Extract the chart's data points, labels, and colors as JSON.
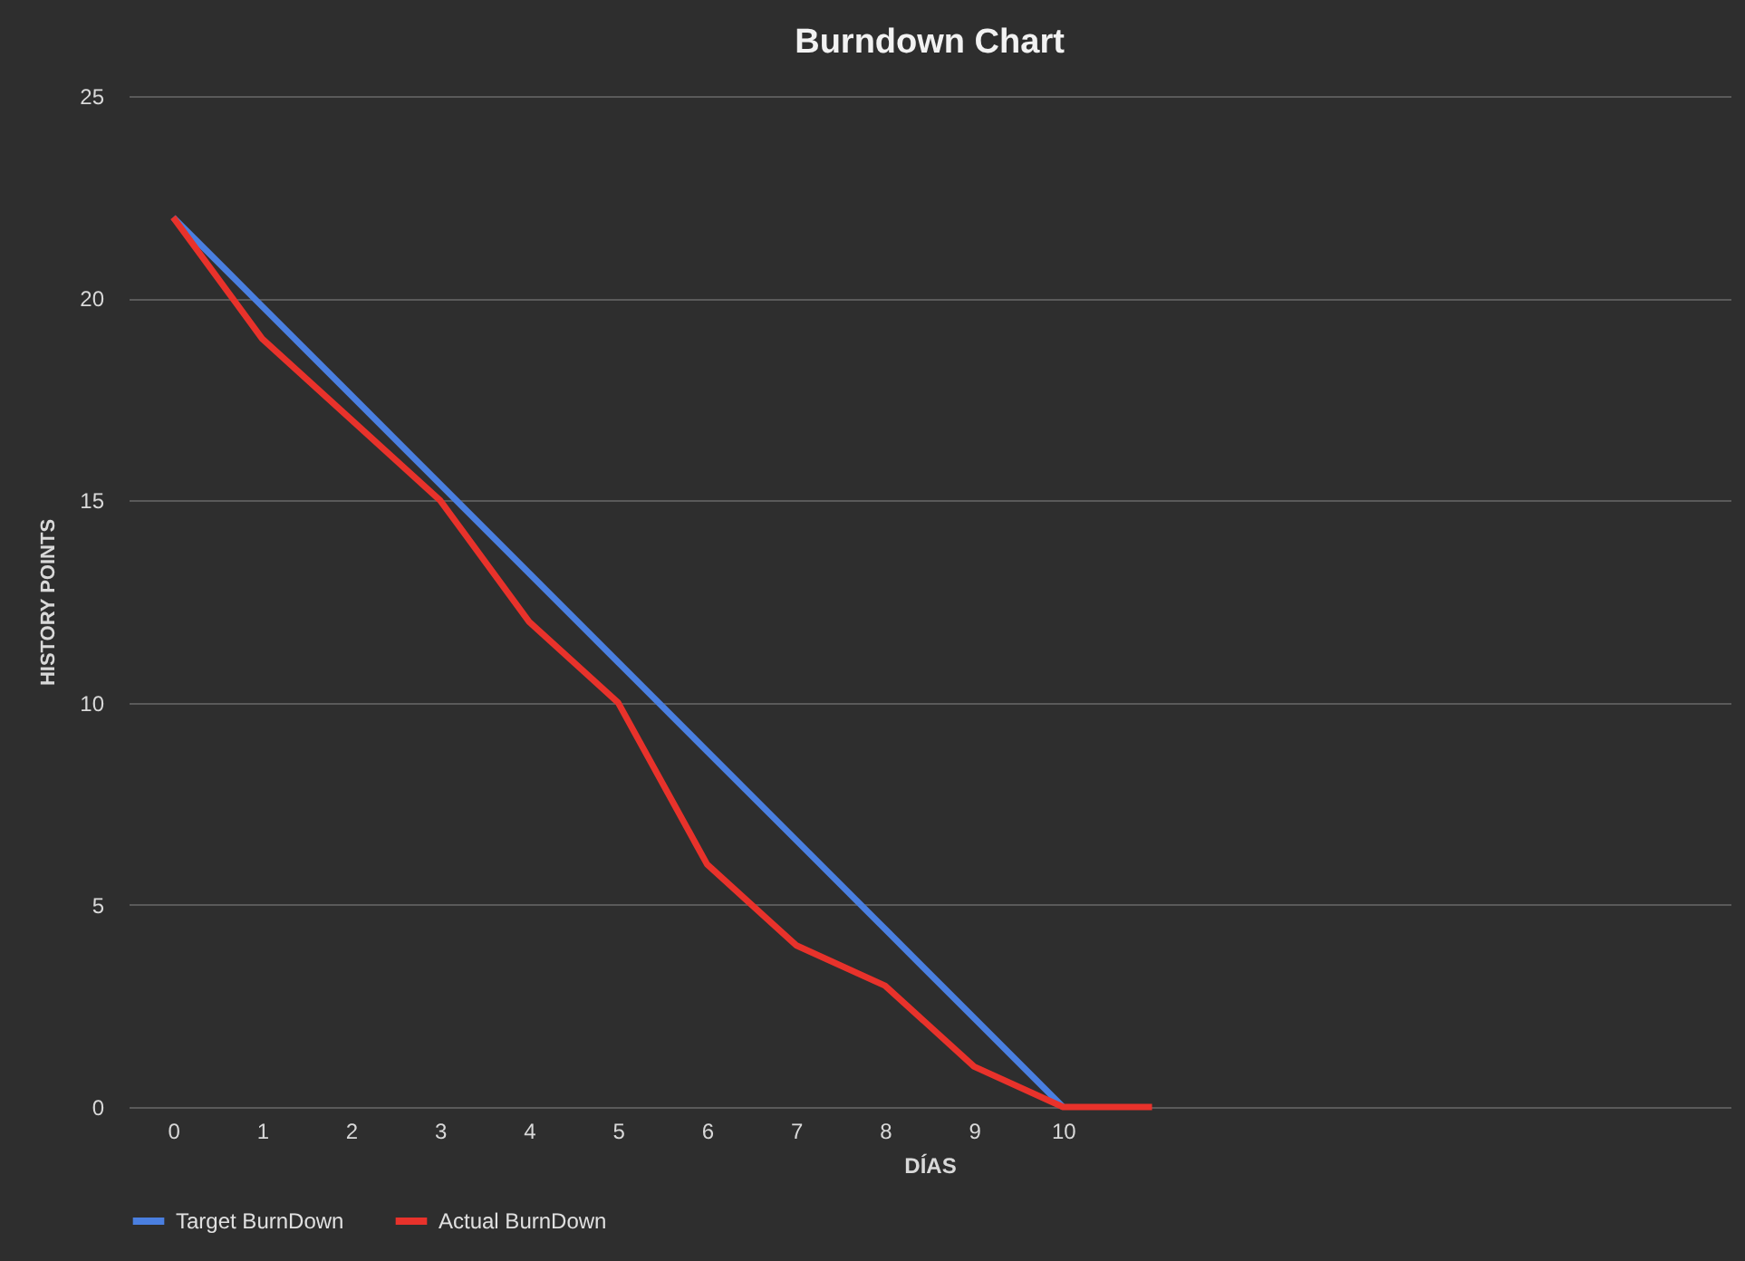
{
  "chart_data": {
    "type": "line",
    "title": "Burndown Chart",
    "xlabel": "DÍAS",
    "ylabel": "HISTORY POINTS",
    "categories": [
      "0",
      "1",
      "2",
      "3",
      "4",
      "5",
      "6",
      "7",
      "8",
      "9",
      "10",
      null,
      null,
      null,
      null,
      null,
      null,
      null
    ],
    "series": [
      {
        "name": "Target BurnDown",
        "color": "#4a7fe0",
        "values": [
          22,
          19.8,
          17.6,
          15.4,
          13.2,
          11,
          8.8,
          6.6,
          4.4,
          2.2,
          0,
          null,
          null,
          null,
          null,
          null,
          null,
          null
        ]
      },
      {
        "name": "Actual BurnDown",
        "color": "#e8322b",
        "values": [
          22,
          19,
          17,
          15,
          12,
          10,
          6,
          4,
          3,
          1,
          0,
          0,
          null,
          null,
          null,
          null,
          null,
          null
        ]
      }
    ],
    "ylim": [
      0,
      25
    ],
    "yticks": [
      0,
      5,
      10,
      15,
      20,
      25
    ],
    "grid": "y",
    "legend": "bottom",
    "marker": "none",
    "line_style": "solid"
  }
}
